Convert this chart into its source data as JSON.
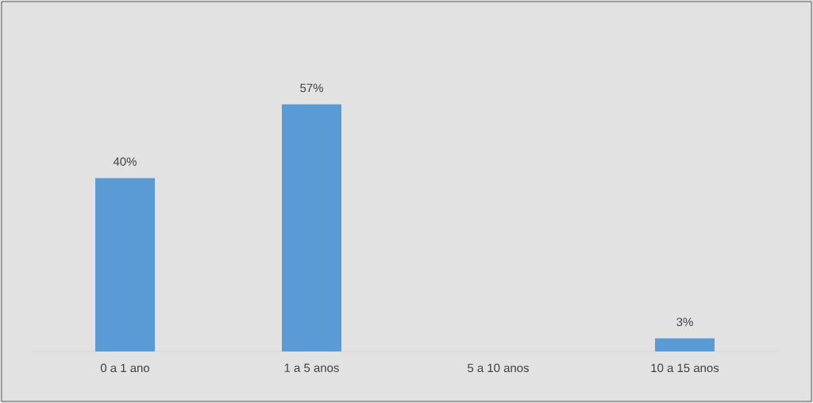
{
  "chart_data": {
    "type": "bar",
    "categories": [
      "0 a 1 ano",
      "1 a 5 anos",
      "5 a 10 anos",
      "10 a 15 anos"
    ],
    "values": [
      40,
      57,
      null,
      3
    ],
    "value_labels": [
      "40%",
      "57%",
      null,
      "3%"
    ],
    "color": "#5b9bd5"
  }
}
